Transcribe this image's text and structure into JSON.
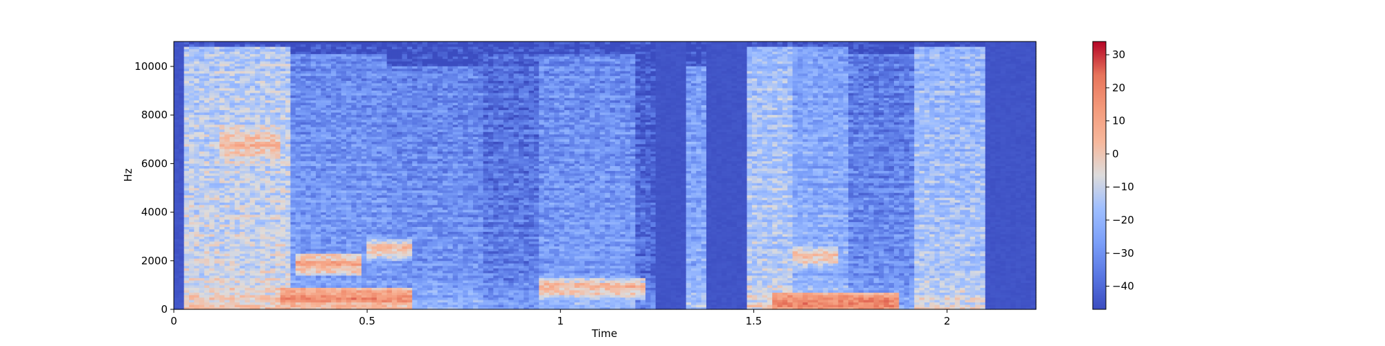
{
  "chart_data": {
    "type": "heatmap",
    "title": "",
    "xlabel": "Time",
    "ylabel": "Hz",
    "xlim": [
      0,
      2.23
    ],
    "ylim": [
      0,
      11025
    ],
    "x_ticks": [
      0,
      0.5,
      1,
      1.5,
      2
    ],
    "x_tick_labels": [
      "0",
      "0.5",
      "1",
      "1.5",
      "2"
    ],
    "y_ticks": [
      0,
      2000,
      4000,
      6000,
      8000,
      10000
    ],
    "y_tick_labels": [
      "0",
      "2000",
      "4000",
      "6000",
      "8000",
      "10000"
    ],
    "colormap": "coolwarm",
    "colorbar": {
      "vmin": -47,
      "vmax": 34,
      "ticks": [
        -40,
        -30,
        -20,
        -10,
        0,
        10,
        20,
        30
      ],
      "tick_labels": [
        "−40",
        "−30",
        "−20",
        "−10",
        "0",
        "10",
        "20",
        "30"
      ]
    },
    "segments": [
      {
        "t0": 0.0,
        "t1": 0.03,
        "level": -46,
        "bw": 10500
      },
      {
        "t0": 0.03,
        "t1": 0.3,
        "level": -8,
        "bw": 10800
      },
      {
        "t0": 0.3,
        "t1": 0.55,
        "level": -26,
        "bw": 10500
      },
      {
        "t0": 0.55,
        "t1": 0.8,
        "level": -28,
        "bw": 10000
      },
      {
        "t0": 0.8,
        "t1": 0.95,
        "level": -34,
        "bw": 10500
      },
      {
        "t0": 0.95,
        "t1": 1.2,
        "level": -26,
        "bw": 10500
      },
      {
        "t0": 1.2,
        "t1": 1.25,
        "level": -38,
        "bw": 10000
      },
      {
        "t0": 1.25,
        "t1": 1.32,
        "level": -46,
        "bw": 10000
      },
      {
        "t0": 1.32,
        "t1": 1.38,
        "level": -22,
        "bw": 10000
      },
      {
        "t0": 1.38,
        "t1": 1.48,
        "level": -46,
        "bw": 10000
      },
      {
        "t0": 1.48,
        "t1": 1.6,
        "level": -12,
        "bw": 10800
      },
      {
        "t0": 1.6,
        "t1": 1.75,
        "level": -20,
        "bw": 10800
      },
      {
        "t0": 1.75,
        "t1": 1.92,
        "level": -30,
        "bw": 10500
      },
      {
        "t0": 1.92,
        "t1": 2.1,
        "level": -14,
        "bw": 10800
      },
      {
        "t0": 2.1,
        "t1": 2.23,
        "level": -44,
        "bw": 6000
      }
    ],
    "formant_bands": [
      {
        "t0": 0.28,
        "t1": 0.62,
        "f": 500,
        "level": 18
      },
      {
        "t0": 0.32,
        "t1": 0.48,
        "f": 1900,
        "level": 10
      },
      {
        "t0": 0.5,
        "t1": 0.62,
        "f": 2500,
        "level": 4
      },
      {
        "t0": 0.95,
        "t1": 1.22,
        "f": 900,
        "level": 6
      },
      {
        "t0": 1.55,
        "t1": 1.88,
        "f": 300,
        "level": 22
      },
      {
        "t0": 1.6,
        "t1": 1.72,
        "f": 2200,
        "level": 4
      },
      {
        "t0": 0.12,
        "t1": 0.28,
        "f": 6800,
        "level": 6
      }
    ]
  }
}
